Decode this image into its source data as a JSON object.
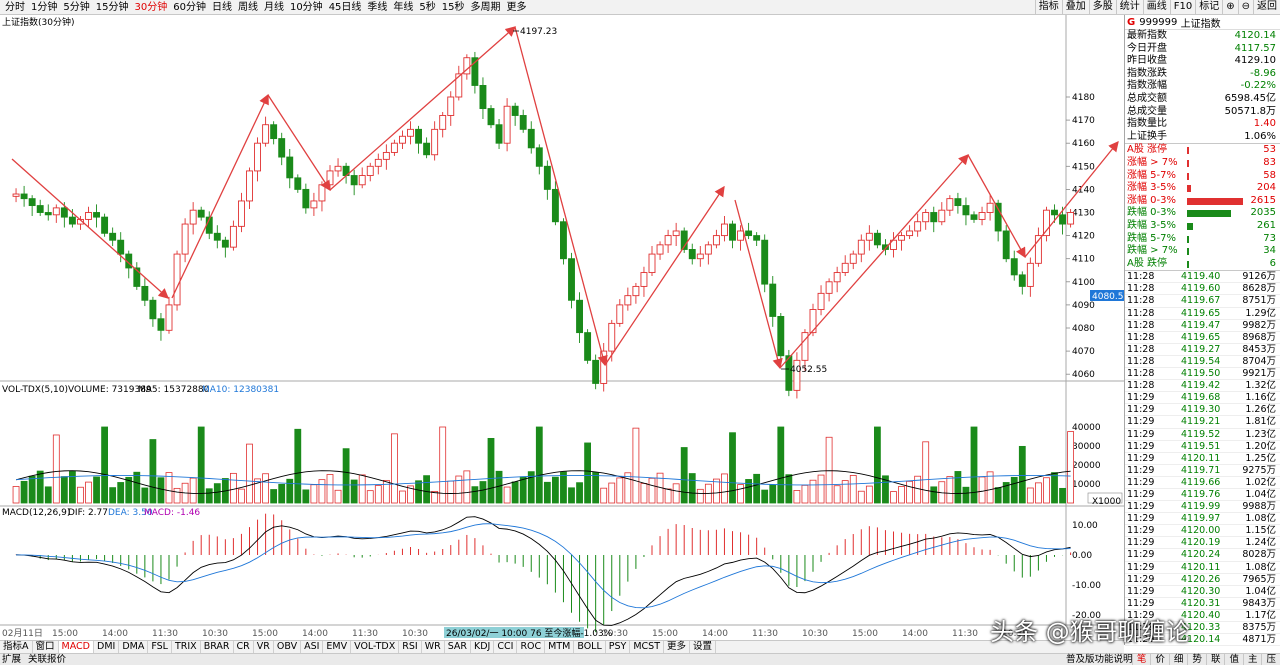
{
  "periods": [
    "分时",
    "1分钟",
    "5分钟",
    "15分钟",
    "30分钟",
    "60分钟",
    "日线",
    "周线",
    "月线",
    "10分钟",
    "45日线",
    "季线",
    "年线",
    "5秒",
    "15秒",
    "多周期",
    "更多"
  ],
  "active_period": "30分钟",
  "toolbar": [
    "指标",
    "叠加",
    "多股",
    "统计",
    "画线",
    "F10",
    "标记",
    "⊕",
    "⊖",
    "返回"
  ],
  "chart": {
    "title": "上证指数(30分钟)",
    "high_label": "4197.23",
    "low_label": "4052.55",
    "current_price_label": "4080.5",
    "price_axis": [
      "4180",
      "4170",
      "4160",
      "4150",
      "4140",
      "4130",
      "4120",
      "4110",
      "4100",
      "4090",
      "4080",
      "4070",
      "4060"
    ],
    "volume_header": [
      "VOL-TDX(5,10)",
      "VOLUME: 7319389",
      "MA5: 15372880",
      "MA10: 12380381"
    ],
    "volume_axis": [
      "40000",
      "30000",
      "20000",
      "10000",
      "X1000"
    ],
    "macd_header": [
      "MACD(12,26,9)",
      "DIF: 2.77",
      "DEA: 3.50",
      "MACD: -1.46"
    ],
    "macd_axis": [
      "10.00",
      "0.00",
      "-10.00",
      "-20.00"
    ],
    "time_axis": [
      "02月11日",
      "15:00",
      "14:00",
      "11:30",
      "10:30",
      "15:00",
      "14:00",
      "11:30",
      "10:30",
      "15:00",
      "14:00",
      "11:30",
      "10:30",
      "15:00",
      "14:00",
      "11:30",
      "10:30",
      "15:00",
      "14:00",
      "11:30",
      "10:30",
      "15:00"
    ],
    "cursor_label": "26/03/02/一 10:00 76 至今涨幅-1.03%",
    "colors": {
      "up": "#e03030",
      "down": "#1a8a1a",
      "arrow": "#e04040",
      "dif": "#000000",
      "dea": "#1f77d8",
      "ma5": "#000000",
      "ma10": "#1f77d8"
    }
  },
  "panel": {
    "code": "999999",
    "name": "上证指数",
    "marker": "G",
    "quotes": [
      {
        "label": "最新指数",
        "value": "4120.14",
        "color": "green"
      },
      {
        "label": "今日开盘",
        "value": "4117.57",
        "color": "green"
      },
      {
        "label": "昨日收盘",
        "value": "4129.10",
        "color": "blk"
      },
      {
        "label": "指数涨跌",
        "value": "-8.96",
        "color": "green"
      },
      {
        "label": "指数涨幅",
        "value": "-0.22%",
        "color": "green"
      },
      {
        "label": "总成交额",
        "value": "6598.45亿",
        "color": "blk"
      },
      {
        "label": "总成交量",
        "value": "50571.8万",
        "color": "blk"
      },
      {
        "label": "指数量比",
        "value": "1.40",
        "color": "red"
      },
      {
        "label": "上证换手",
        "value": "1.06%",
        "color": "blk"
      }
    ],
    "breadth": [
      {
        "label": "A股 涨停",
        "value": "53",
        "bar": 0.03,
        "color": "red"
      },
      {
        "label": "涨幅 > 7%",
        "value": "83",
        "bar": 0.04,
        "color": "red"
      },
      {
        "label": "涨幅 5-7%",
        "value": "58",
        "bar": 0.03,
        "color": "red"
      },
      {
        "label": "涨幅 3-5%",
        "value": "204",
        "bar": 0.08,
        "color": "red"
      },
      {
        "label": "涨幅 0-3%",
        "value": "2615",
        "bar": 1.0,
        "color": "red"
      },
      {
        "label": "跌幅 0-3%",
        "value": "2035",
        "bar": 0.78,
        "color": "green"
      },
      {
        "label": "跌幅 3-5%",
        "value": "261",
        "bar": 0.1,
        "color": "green"
      },
      {
        "label": "跌幅 5-7%",
        "value": "73",
        "bar": 0.03,
        "color": "green"
      },
      {
        "label": "跌幅 > 7%",
        "value": "34",
        "bar": 0.02,
        "color": "green"
      },
      {
        "label": "A股 跌停",
        "value": "6",
        "bar": 0.01,
        "color": "green"
      }
    ],
    "ticks": [
      {
        "t": "11:28",
        "p": "4119.40",
        "v": "9126万"
      },
      {
        "t": "11:28",
        "p": "4119.60",
        "v": "8628万"
      },
      {
        "t": "11:28",
        "p": "4119.67",
        "v": "8751万"
      },
      {
        "t": "11:28",
        "p": "4119.65",
        "v": "1.29亿"
      },
      {
        "t": "11:28",
        "p": "4119.47",
        "v": "9982万"
      },
      {
        "t": "11:28",
        "p": "4119.65",
        "v": "8968万"
      },
      {
        "t": "11:28",
        "p": "4119.27",
        "v": "8453万"
      },
      {
        "t": "11:28",
        "p": "4119.54",
        "v": "8704万"
      },
      {
        "t": "11:28",
        "p": "4119.50",
        "v": "9921万"
      },
      {
        "t": "11:28",
        "p": "4119.42",
        "v": "1.32亿"
      },
      {
        "t": "11:29",
        "p": "4119.68",
        "v": "1.16亿"
      },
      {
        "t": "11:29",
        "p": "4119.30",
        "v": "1.26亿"
      },
      {
        "t": "11:29",
        "p": "4119.21",
        "v": "1.81亿"
      },
      {
        "t": "11:29",
        "p": "4119.52",
        "v": "1.23亿"
      },
      {
        "t": "11:29",
        "p": "4119.51",
        "v": "1.20亿"
      },
      {
        "t": "11:29",
        "p": "4120.11",
        "v": "1.25亿"
      },
      {
        "t": "11:29",
        "p": "4119.71",
        "v": "9275万"
      },
      {
        "t": "11:29",
        "p": "4119.66",
        "v": "1.02亿"
      },
      {
        "t": "11:29",
        "p": "4119.76",
        "v": "1.04亿"
      },
      {
        "t": "11:29",
        "p": "4119.99",
        "v": "9988万"
      },
      {
        "t": "11:29",
        "p": "4119.97",
        "v": "1.08亿"
      },
      {
        "t": "11:29",
        "p": "4120.00",
        "v": "1.15亿"
      },
      {
        "t": "11:29",
        "p": "4120.19",
        "v": "1.24亿"
      },
      {
        "t": "11:29",
        "p": "4120.24",
        "v": "8028万"
      },
      {
        "t": "11:29",
        "p": "4120.11",
        "v": "1.08亿"
      },
      {
        "t": "11:29",
        "p": "4120.26",
        "v": "7965万"
      },
      {
        "t": "11:29",
        "p": "4120.30",
        "v": "1.04亿"
      },
      {
        "t": "11:29",
        "p": "4120.31",
        "v": "9843万"
      },
      {
        "t": "11:29",
        "p": "4120.40",
        "v": "1.17亿"
      },
      {
        "t": "11:29",
        "p": "4120.33",
        "v": "8375万"
      },
      {
        "t": "11:29",
        "p": "4120.14",
        "v": "4871万"
      }
    ],
    "tabs": [
      "笔",
      "价",
      "细",
      "势",
      "联",
      "值",
      "主",
      "压"
    ],
    "footer_text": "普及版功能说明"
  },
  "indicator_tabs": [
    "指标A",
    "窗口",
    "MACD",
    "DMI",
    "DMA",
    "FSL",
    "TRIX",
    "BRAR",
    "CR",
    "VR",
    "OBV",
    "ASI",
    "EMV",
    "VOL-TDX",
    "RSI",
    "WR",
    "SAR",
    "KDJ",
    "CCI",
    "ROC",
    "MTM",
    "BOLL",
    "PSY",
    "MCST",
    "更多",
    "设置"
  ],
  "active_indicator": "MACD",
  "bottom_left": [
    "扩展",
    "关联报价"
  ],
  "watermark": "头条 @猴哥聊缠论"
}
